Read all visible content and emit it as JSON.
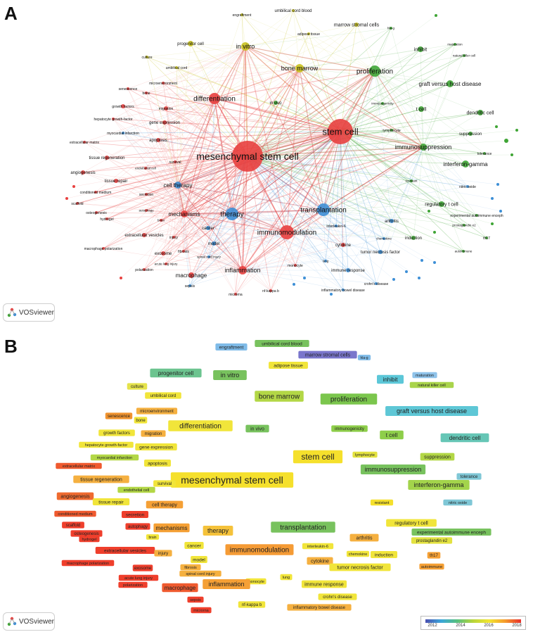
{
  "panels": [
    {
      "id": "network",
      "letter": "A"
    },
    {
      "id": "overlay",
      "letter": "B"
    }
  ],
  "branding": {
    "name": "VOSviewer"
  },
  "legend": {
    "ticks": [
      "2012",
      "2014",
      "2016",
      "2018"
    ]
  },
  "cluster_colors": {
    "red": "#e8403f",
    "green": "#3fa535",
    "blue": "#3d8fd6",
    "yellow": "#c9c21f"
  },
  "network": {
    "nodes": [
      {
        "label": "mesenchymal stem cell",
        "cluster": "red"
      },
      {
        "label": "stem cell",
        "cluster": "red"
      },
      {
        "label": "differentiation",
        "cluster": "red"
      },
      {
        "label": "immunomodulation",
        "cluster": "red"
      },
      {
        "label": "mechanisms",
        "cluster": "red"
      },
      {
        "label": "inflammation",
        "cluster": "red"
      },
      {
        "label": "macrophage",
        "cluster": "red"
      },
      {
        "label": "exosome",
        "cluster": "red"
      },
      {
        "label": "extracellular vesicles",
        "cluster": "red"
      },
      {
        "label": "tissue regeneration",
        "cluster": "red"
      },
      {
        "label": "angiogenesis",
        "cluster": "red"
      },
      {
        "label": "tissue repair",
        "cluster": "red"
      },
      {
        "label": "apoptosis",
        "cluster": "red"
      },
      {
        "label": "growth factors",
        "cluster": "red"
      },
      {
        "label": "gene expression",
        "cluster": "red"
      },
      {
        "label": "migration",
        "cluster": "red"
      },
      {
        "label": "hepatocyte growth-factor",
        "cluster": "red"
      },
      {
        "label": "senescence",
        "cluster": "red"
      },
      {
        "label": "bone",
        "cluster": "red"
      },
      {
        "label": "microenvironment",
        "cluster": "red"
      },
      {
        "label": "extracellular matrix",
        "cluster": "red"
      },
      {
        "label": "survival",
        "cluster": "red"
      },
      {
        "label": "endothelial cell",
        "cluster": "red"
      },
      {
        "label": "secretion",
        "cluster": "red"
      },
      {
        "label": "conditioned medium",
        "cluster": "red"
      },
      {
        "label": "scaffold",
        "cluster": "red"
      },
      {
        "label": "osteogenesis",
        "cluster": "red"
      },
      {
        "label": "hydrogel",
        "cluster": "red"
      },
      {
        "label": "autophagy",
        "cluster": "red"
      },
      {
        "label": "brain",
        "cluster": "red"
      },
      {
        "label": "injury",
        "cluster": "red"
      },
      {
        "label": "fibrosis",
        "cluster": "red"
      },
      {
        "label": "macrophage polarization",
        "cluster": "red"
      },
      {
        "label": "polarization",
        "cluster": "red"
      },
      {
        "label": "acute lung injury",
        "cluster": "red"
      },
      {
        "label": "cytokine",
        "cluster": "red"
      },
      {
        "label": "sepsis",
        "cluster": "blue"
      },
      {
        "label": "nf-kappa b",
        "cluster": "red"
      },
      {
        "label": "microrna",
        "cluster": "red"
      },
      {
        "label": "monocyte",
        "cluster": "red"
      },
      {
        "label": "spinal cord injury",
        "cluster": "blue"
      },
      {
        "label": "model",
        "cluster": "blue"
      },
      {
        "label": "cancer",
        "cluster": "blue"
      },
      {
        "label": "therapy",
        "cluster": "blue"
      },
      {
        "label": "cell therapy",
        "cluster": "blue"
      },
      {
        "label": "transplantation",
        "cluster": "blue"
      },
      {
        "label": "myocardial infarction",
        "cluster": "blue"
      },
      {
        "label": "arthritis",
        "cluster": "blue"
      },
      {
        "label": "immune response",
        "cluster": "blue"
      },
      {
        "label": "inflammatory bowel disease",
        "cluster": "blue"
      },
      {
        "label": "crohn's disease",
        "cluster": "blue"
      },
      {
        "label": "tumor necrosis factor",
        "cluster": "blue"
      },
      {
        "label": "interleukin-6",
        "cluster": "blue"
      },
      {
        "label": "lung",
        "cluster": "blue"
      },
      {
        "label": "chemokine",
        "cluster": "blue"
      },
      {
        "label": "nitric oxide",
        "cluster": "blue"
      },
      {
        "label": "in vitro",
        "cluster": "yellow"
      },
      {
        "label": "bone marrow",
        "cluster": "yellow"
      },
      {
        "label": "progenitor cell",
        "cluster": "yellow"
      },
      {
        "label": "umbilical cord blood",
        "cluster": "yellow"
      },
      {
        "label": "marrow stromal cells",
        "cluster": "yellow"
      },
      {
        "label": "engraftment",
        "cluster": "yellow"
      },
      {
        "label": "adipose tissue",
        "cluster": "yellow"
      },
      {
        "label": "culture",
        "cluster": "yellow"
      },
      {
        "label": "umbilical cord",
        "cluster": "yellow"
      },
      {
        "label": "hla-g",
        "cluster": "green"
      },
      {
        "label": "in vivo",
        "cluster": "green"
      },
      {
        "label": "proliferation",
        "cluster": "green"
      },
      {
        "label": "inhibit",
        "cluster": "green"
      },
      {
        "label": "maturation",
        "cluster": "green"
      },
      {
        "label": "natural killer cell",
        "cluster": "green"
      },
      {
        "label": "graft versus host disease",
        "cluster": "green"
      },
      {
        "label": "t cell",
        "cluster": "green"
      },
      {
        "label": "dendritic cell",
        "cluster": "green"
      },
      {
        "label": "immunogenicity",
        "cluster": "green"
      },
      {
        "label": "lymphocyte",
        "cluster": "green"
      },
      {
        "label": "suppression",
        "cluster": "green"
      },
      {
        "label": "immunosuppression",
        "cluster": "green"
      },
      {
        "label": "tolerance",
        "cluster": "green"
      },
      {
        "label": "interferon-gamma",
        "cluster": "green"
      },
      {
        "label": "resistant",
        "cluster": "green"
      },
      {
        "label": "regulatory t cell",
        "cluster": "green"
      },
      {
        "label": "experimental autoimmune enceph",
        "cluster": "green"
      },
      {
        "label": "prostaglandin e2",
        "cluster": "green"
      },
      {
        "label": "induction",
        "cluster": "green"
      },
      {
        "label": "autoimmune",
        "cluster": "green"
      },
      {
        "label": "th17",
        "cluster": "green"
      }
    ]
  },
  "overlay": {
    "items": [
      {
        "label": "engraftment",
        "color": "#7fbbe8"
      },
      {
        "label": "umbilical cord blood",
        "color": "#78c25e"
      },
      {
        "label": "marrow stromal cells",
        "color": "#7a76cc"
      },
      {
        "label": "hla-g",
        "color": "#7fbbe8"
      },
      {
        "label": "adipose tissue",
        "color": "#f1e53a"
      },
      {
        "label": "progenitor cell",
        "color": "#6cc48f"
      },
      {
        "label": "in vitro",
        "color": "#78c25e"
      },
      {
        "label": "inhibit",
        "color": "#5cc7d8"
      },
      {
        "label": "maturation",
        "color": "#8fc3ea"
      },
      {
        "label": "natural killer cell",
        "color": "#a9d44b"
      },
      {
        "label": "culture",
        "color": "#e5e34b"
      },
      {
        "label": "umbilical cord",
        "color": "#f1e53a"
      },
      {
        "label": "bone marrow",
        "color": "#b3d746"
      },
      {
        "label": "proliferation",
        "color": "#7bc64d"
      },
      {
        "label": "microenvironment",
        "color": "#f5b040"
      },
      {
        "label": "graft versus host disease",
        "color": "#5ec7d6"
      },
      {
        "label": "senescence",
        "color": "#f0932f"
      },
      {
        "label": "bone",
        "color": "#f1e53a"
      },
      {
        "label": "differentiation",
        "color": "#f1e53a"
      },
      {
        "label": "growth factors",
        "color": "#f1e53a"
      },
      {
        "label": "migration",
        "color": "#f5b040"
      },
      {
        "label": "in vivo",
        "color": "#78c25e"
      },
      {
        "label": "immunogenicity",
        "color": "#8ece4a"
      },
      {
        "label": "t cell",
        "color": "#8ece4a"
      },
      {
        "label": "dendritic cell",
        "color": "#66c6b6"
      },
      {
        "label": "hepatocyte growth-factor",
        "color": "#f1e53a"
      },
      {
        "label": "gene expression",
        "color": "#f1e53a"
      },
      {
        "label": "stem cell",
        "color": "#f5e02c"
      },
      {
        "label": "lymphocyte",
        "color": "#e3e240"
      },
      {
        "label": "suppression",
        "color": "#b3d746"
      },
      {
        "label": "myocardial infarction",
        "color": "#b3d746"
      },
      {
        "label": "apoptosis",
        "color": "#f1e53a"
      },
      {
        "label": "extracellular matrix",
        "color": "#ef5a2f"
      },
      {
        "label": "immunosuppression",
        "color": "#78c25e"
      },
      {
        "label": "tolerance",
        "color": "#7fc7d6"
      },
      {
        "label": "tissue regeneration",
        "color": "#f5b040"
      },
      {
        "label": "mesenchymal stem cell",
        "color": "#f5e02c"
      },
      {
        "label": "interferon-gamma",
        "color": "#a3d44b"
      },
      {
        "label": "endothelial cell",
        "color": "#b3d746"
      },
      {
        "label": "survival",
        "color": "#f1e53a"
      },
      {
        "label": "angiogenesis",
        "color": "#ef6a2f"
      },
      {
        "label": "tissue repair",
        "color": "#f1e53a"
      },
      {
        "label": "cell therapy",
        "color": "#f5a035"
      },
      {
        "label": "nitric oxide",
        "color": "#7fc7d6"
      },
      {
        "label": "conditioned medium",
        "color": "#ef5a2f"
      },
      {
        "label": "secretion",
        "color": "#ef3f2c"
      },
      {
        "label": "resistant",
        "color": "#f5e02c"
      },
      {
        "label": "scaffold",
        "color": "#ef3f2c"
      },
      {
        "label": "autophagy",
        "color": "#ef3f2c"
      },
      {
        "label": "mechanisms",
        "color": "#f5a035"
      },
      {
        "label": "therapy",
        "color": "#f5c23a"
      },
      {
        "label": "transplantation",
        "color": "#78c25e"
      },
      {
        "label": "arthritis",
        "color": "#f5b040"
      },
      {
        "label": "regulatory t cell",
        "color": "#f1e53a"
      },
      {
        "label": "osteogenesis",
        "color": "#ef3f2c"
      },
      {
        "label": "brain",
        "color": "#f1e53a"
      },
      {
        "label": "experimental autoimmune enceph",
        "color": "#78c25e"
      },
      {
        "label": "hydrogel",
        "color": "#ef3f2c"
      },
      {
        "label": "prostaglandin e2",
        "color": "#e3e240"
      },
      {
        "label": "extracellular vesicles",
        "color": "#ef3f2c"
      },
      {
        "label": "injury",
        "color": "#f5b040"
      },
      {
        "label": "cancer",
        "color": "#f1e53a"
      },
      {
        "label": "immunomodulation",
        "color": "#f59b35"
      },
      {
        "label": "interleukin-6",
        "color": "#f1e53a"
      },
      {
        "label": "chemokine",
        "color": "#f1e53a"
      },
      {
        "label": "induction",
        "color": "#f1e53a"
      },
      {
        "label": "th17",
        "color": "#f5a035"
      },
      {
        "label": "macrophage polarization",
        "color": "#ef3f2c"
      },
      {
        "label": "exosome",
        "color": "#ef3f2c"
      },
      {
        "label": "model",
        "color": "#f1e53a"
      },
      {
        "label": "cytokine",
        "color": "#f5b040"
      },
      {
        "label": "autoimmune",
        "color": "#f5a035"
      },
      {
        "label": "fibrosis",
        "color": "#f5b040"
      },
      {
        "label": "tumor necrosis factor",
        "color": "#f1e53a"
      },
      {
        "label": "spinal cord injury",
        "color": "#f5b040"
      },
      {
        "label": "acute lung injury",
        "color": "#ef3f2c"
      },
      {
        "label": "lung",
        "color": "#f1e53a"
      },
      {
        "label": "monocyte",
        "color": "#f1e53a"
      },
      {
        "label": "polarization",
        "color": "#ef3f2c"
      },
      {
        "label": "macrophage",
        "color": "#ef5a2f"
      },
      {
        "label": "inflammation",
        "color": "#f5a035"
      },
      {
        "label": "immune response",
        "color": "#f1e53a"
      },
      {
        "label": "sepsis",
        "color": "#ef3f2c"
      },
      {
        "label": "microrna",
        "color": "#ef3f2c"
      },
      {
        "label": "nf-kappa b",
        "color": "#f1e53a"
      },
      {
        "label": "crohn's disease",
        "color": "#f1e53a"
      },
      {
        "label": "inflammatory bowel disease",
        "color": "#f5b040"
      }
    ]
  }
}
